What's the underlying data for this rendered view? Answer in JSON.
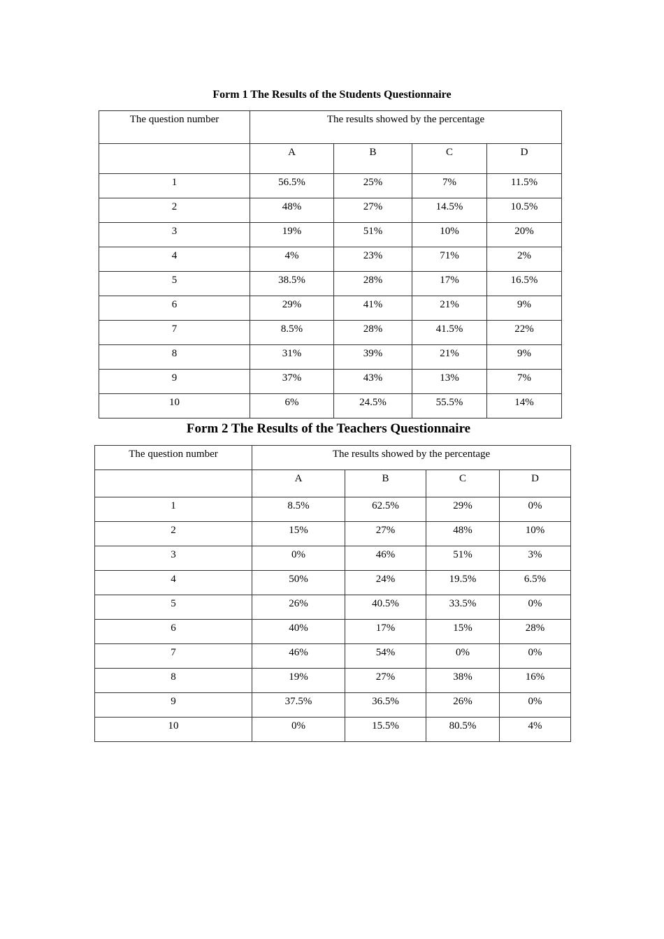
{
  "tables": [
    {
      "title": "Form 1 The Results of the Students Questionnaire",
      "header_question": "The question number",
      "header_results": "The results showed by the percentage",
      "options": [
        "A",
        "B",
        "C",
        "D"
      ],
      "rows": [
        {
          "q": "1",
          "values": [
            "56.5%",
            "25%",
            "7%",
            "11.5%"
          ]
        },
        {
          "q": "2",
          "values": [
            "48%",
            "27%",
            "14.5%",
            "10.5%"
          ]
        },
        {
          "q": "3",
          "values": [
            "19%",
            "51%",
            "10%",
            "20%"
          ]
        },
        {
          "q": "4",
          "values": [
            "4%",
            "23%",
            "71%",
            "2%"
          ]
        },
        {
          "q": "5",
          "values": [
            "38.5%",
            "28%",
            "17%",
            "16.5%"
          ]
        },
        {
          "q": "6",
          "values": [
            "29%",
            "41%",
            "21%",
            "9%"
          ]
        },
        {
          "q": "7",
          "values": [
            "8.5%",
            "28%",
            "41.5%",
            "22%"
          ]
        },
        {
          "q": "8",
          "values": [
            "31%",
            "39%",
            "21%",
            "9%"
          ]
        },
        {
          "q": "9",
          "values": [
            "37%",
            "43%",
            "13%",
            "7%"
          ]
        },
        {
          "q": "10",
          "values": [
            "6%",
            "24.5%",
            "55.5%",
            "14%"
          ]
        }
      ]
    },
    {
      "title": "Form 2 The Results of the Teachers Questionnaire",
      "header_question": "The question number",
      "header_results": "The results showed by the percentage",
      "options": [
        "A",
        "B",
        "C",
        "D"
      ],
      "rows": [
        {
          "q": "1",
          "values": [
            "8.5%",
            "62.5%",
            "29%",
            "0%"
          ]
        },
        {
          "q": "2",
          "values": [
            "15%",
            "27%",
            "48%",
            "10%"
          ]
        },
        {
          "q": "3",
          "values": [
            "0%",
            "46%",
            "51%",
            "3%"
          ]
        },
        {
          "q": "4",
          "values": [
            "50%",
            "24%",
            "19.5%",
            "6.5%"
          ]
        },
        {
          "q": "5",
          "values": [
            "26%",
            "40.5%",
            "33.5%",
            "0%"
          ]
        },
        {
          "q": "6",
          "values": [
            "40%",
            "17%",
            "15%",
            "28%"
          ]
        },
        {
          "q": "7",
          "values": [
            "46%",
            "54%",
            "0%",
            "0%"
          ]
        },
        {
          "q": "8",
          "values": [
            "19%",
            "27%",
            "38%",
            "16%"
          ]
        },
        {
          "q": "9",
          "values": [
            "37.5%",
            "36.5%",
            "26%",
            "0%"
          ]
        },
        {
          "q": "10",
          "values": [
            "0%",
            "15.5%",
            "80.5%",
            "4%"
          ]
        }
      ]
    }
  ]
}
